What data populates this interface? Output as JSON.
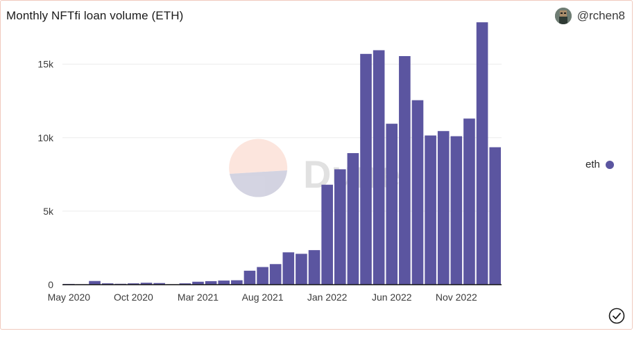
{
  "header": {
    "title": "Monthly NFTfi loan volume (ETH)",
    "author": "@rchen8"
  },
  "watermark": {
    "text": "Dune"
  },
  "colors": {
    "bar": "#5b55a0",
    "grid": "#ececec",
    "axis": "#111111",
    "label": "#3a3a3a"
  },
  "chart_data": {
    "type": "bar",
    "title": "Monthly NFTfi loan volume (ETH)",
    "xlabel": "",
    "ylabel": "",
    "ylim": [
      0,
      18000
    ],
    "yticks": [
      {
        "value": 0,
        "label": "0"
      },
      {
        "value": 5000,
        "label": "5k"
      },
      {
        "value": 10000,
        "label": "10k"
      },
      {
        "value": 15000,
        "label": "15k"
      }
    ],
    "grid": true,
    "legend_position": "right",
    "categories": [
      "2020-05",
      "2020-06",
      "2020-07",
      "2020-08",
      "2020-09",
      "2020-10",
      "2020-11",
      "2020-12",
      "2021-01",
      "2021-02",
      "2021-03",
      "2021-04",
      "2021-05",
      "2021-06",
      "2021-07",
      "2021-08",
      "2021-09",
      "2021-10",
      "2021-11",
      "2021-12",
      "2022-01",
      "2022-02",
      "2022-03",
      "2022-04",
      "2022-05",
      "2022-06",
      "2022-07",
      "2022-08",
      "2022-09",
      "2022-10",
      "2022-11",
      "2022-12",
      "2023-01",
      "2023-02"
    ],
    "xtick_labels": [
      {
        "index": 0,
        "label": "May 2020"
      },
      {
        "index": 5,
        "label": "Oct 2020"
      },
      {
        "index": 10,
        "label": "Mar 2021"
      },
      {
        "index": 15,
        "label": "Aug 2021"
      },
      {
        "index": 20,
        "label": "Jan 2022"
      },
      {
        "index": 25,
        "label": "Jun 2022"
      },
      {
        "index": 30,
        "label": "Nov 2022"
      }
    ],
    "series": [
      {
        "name": "eth",
        "values": [
          50,
          30,
          250,
          90,
          60,
          90,
          130,
          110,
          30,
          90,
          200,
          240,
          280,
          300,
          950,
          1200,
          1400,
          2200,
          2100,
          2350,
          6800,
          7850,
          8950,
          15700,
          15950,
          10950,
          15550,
          12550,
          10150,
          10450,
          10100,
          11300,
          17850,
          9350
        ]
      }
    ]
  }
}
